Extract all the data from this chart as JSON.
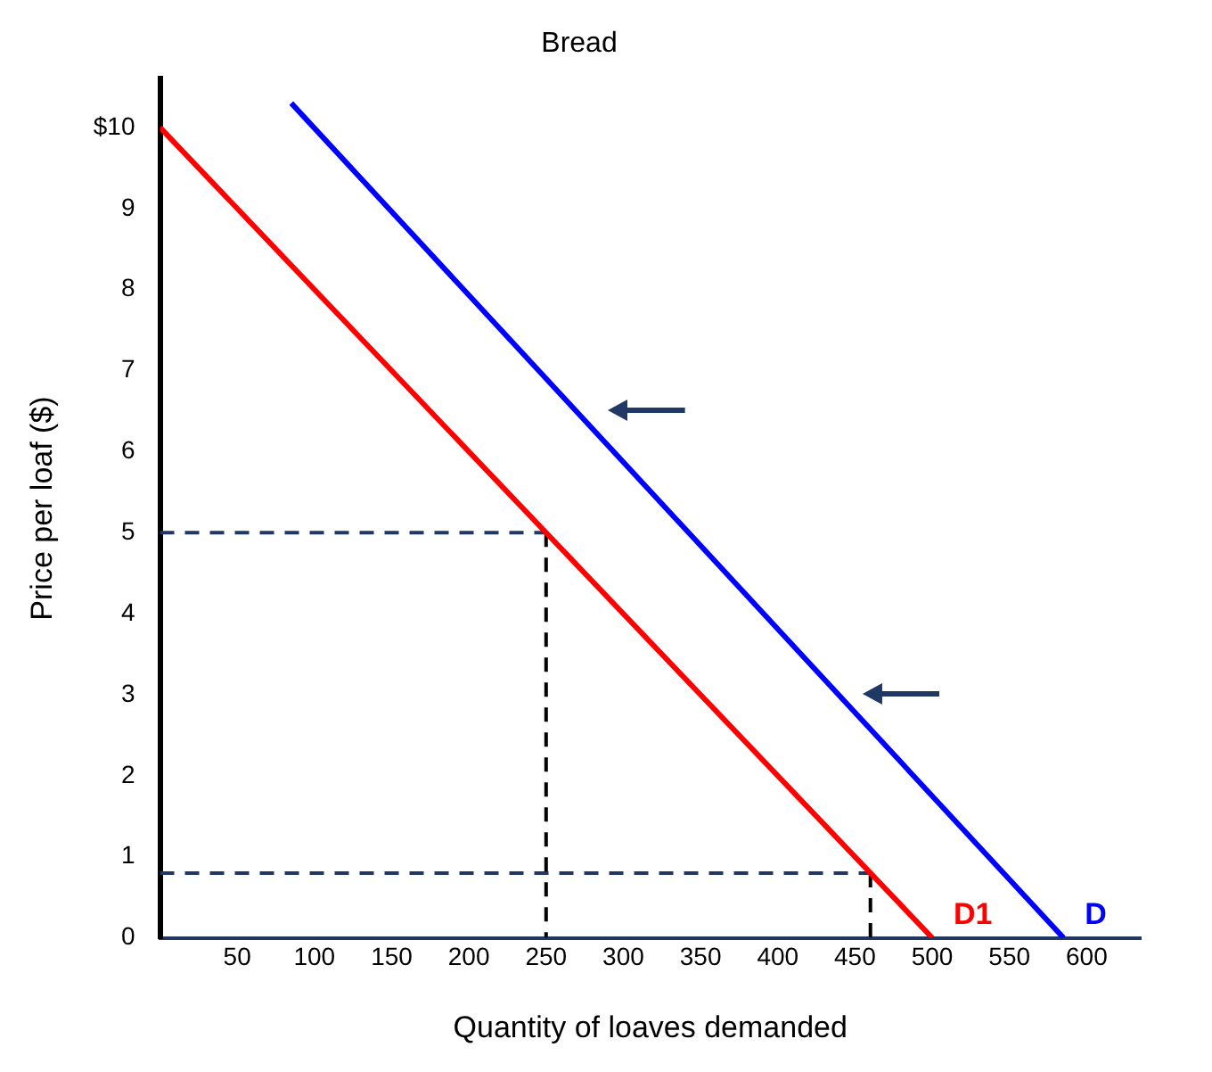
{
  "chart_data": {
    "type": "line",
    "title": "Bread",
    "xlabel": "Quantity of loaves demanded",
    "ylabel": "Price per loaf ($)",
    "xlim": [
      0,
      635
    ],
    "ylim": [
      0,
      10.6
    ],
    "xticks": [
      50,
      100,
      150,
      200,
      250,
      300,
      350,
      400,
      450,
      500,
      550,
      600
    ],
    "yticks": [
      0,
      1,
      2,
      3,
      4,
      5,
      6,
      7,
      8,
      9,
      {
        "value": 10,
        "label": "$10"
      }
    ],
    "grid": false,
    "legend": false,
    "marker": "none",
    "series": [
      {
        "name": "D1",
        "color": "#ff0000",
        "x": [
          0,
          500
        ],
        "values": [
          10,
          0
        ]
      },
      {
        "name": "D",
        "color": "#0000ff",
        "x": [
          85,
          585
        ],
        "values": [
          10.3,
          0
        ]
      },
      {
        "color": "#1f3864",
        "x": [
          0,
          250
        ],
        "values": [
          5,
          5
        ],
        "line_style": "dashed"
      },
      {
        "color": "#000000",
        "x": [
          250,
          250
        ],
        "values": [
          5,
          0
        ],
        "line_style": "dashed"
      },
      {
        "color": "#1f3864",
        "x": [
          0,
          460
        ],
        "values": [
          0.8,
          0.8
        ],
        "line_style": "dashed"
      },
      {
        "color": "#000000",
        "x": [
          460,
          460
        ],
        "values": [
          0.8,
          0
        ],
        "line_style": "dashed"
      }
    ]
  }
}
